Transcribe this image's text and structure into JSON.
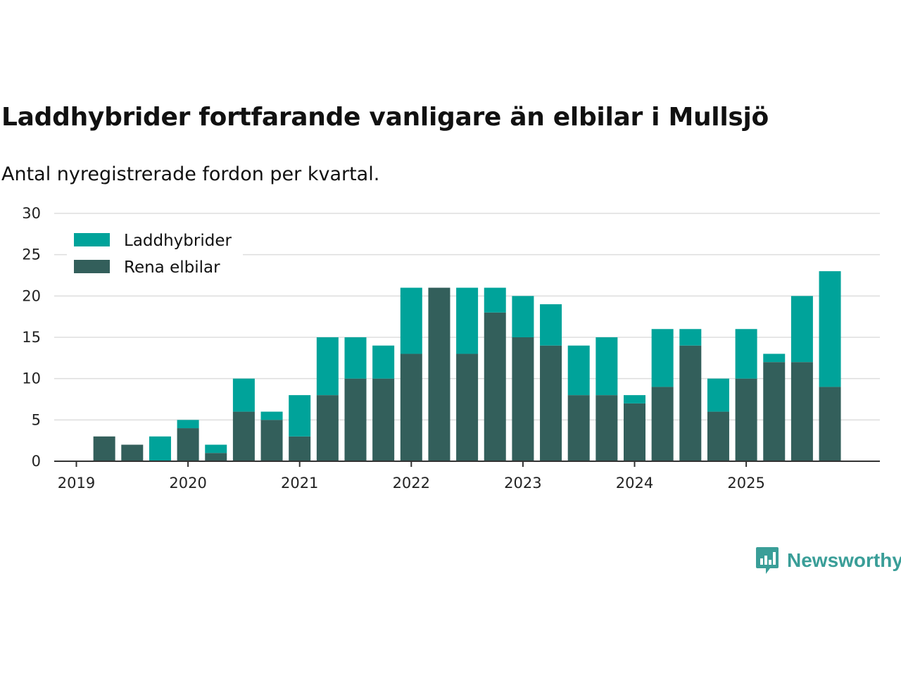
{
  "title": "Laddhybrider fortfarande vanligare än elbilar i Mullsjö",
  "subtitle": "Antal nyregistrerade fordon per kvartal.",
  "brand": "Newsworthy",
  "colors": {
    "laddhybrider": "#00a39a",
    "elbilar": "#335f5b",
    "grid": "#dddddd",
    "axis": "#333333"
  },
  "chart_data": {
    "type": "bar",
    "stacked": true,
    "categories": [
      "2019 Q1",
      "2019 Q2",
      "2019 Q3",
      "2019 Q4",
      "2020 Q1",
      "2020 Q2",
      "2020 Q3",
      "2020 Q4",
      "2021 Q1",
      "2021 Q2",
      "2021 Q3",
      "2021 Q4",
      "2022 Q1",
      "2022 Q2",
      "2022 Q3",
      "2022 Q4",
      "2023 Q1",
      "2023 Q2",
      "2023 Q3",
      "2023 Q4",
      "2024 Q1",
      "2024 Q2",
      "2024 Q3",
      "2024 Q4",
      "2025 Q1",
      "2025 Q2",
      "2025 Q3",
      "2025 Q4"
    ],
    "series": [
      {
        "name": "Rena elbilar",
        "values": [
          0,
          3,
          2,
          0,
          4,
          1,
          6,
          5,
          3,
          8,
          10,
          10,
          13,
          21,
          13,
          18,
          15,
          14,
          8,
          8,
          7,
          9,
          14,
          6,
          10,
          12,
          12,
          9
        ]
      },
      {
        "name": "Laddhybrider",
        "values": [
          0,
          0,
          0,
          3,
          1,
          1,
          4,
          1,
          5,
          7,
          5,
          4,
          8,
          0,
          8,
          3,
          5,
          5,
          6,
          7,
          1,
          7,
          2,
          4,
          6,
          1,
          8,
          14
        ]
      }
    ],
    "x_tick_labels": [
      "2019",
      "2020",
      "2021",
      "2022",
      "2023",
      "2024",
      "2025"
    ],
    "y_ticks": [
      "0",
      "5",
      "10",
      "15",
      "20",
      "25",
      "30"
    ],
    "ylim": [
      0,
      30
    ],
    "legend": [
      "Laddhybrider",
      "Rena elbilar"
    ],
    "legend_position": "top-left",
    "grid": true
  }
}
